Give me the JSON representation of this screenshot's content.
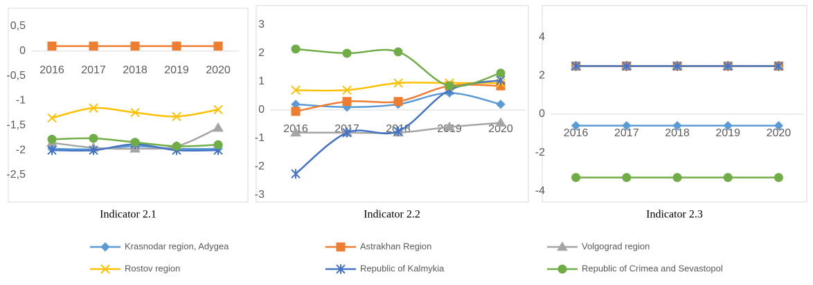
{
  "chart_data": [
    {
      "type": "line",
      "title": "Indicator 2.1",
      "categories": [
        "2016",
        "2017",
        "2018",
        "2019",
        "2020"
      ],
      "ylim": [
        -2.5,
        0.5
      ],
      "yticks": [
        {
          "value": 0.5,
          "label": "0,5"
        },
        0,
        {
          "value": -0.5,
          "label": "-0,5"
        },
        -1,
        {
          "value": -1.5,
          "label": "-1,5"
        },
        -2,
        {
          "value": -2.5,
          "label": "-2,5"
        }
      ],
      "grid": false,
      "legend": "bottom",
      "series": [
        {
          "name": "Krasnodar region, Adygea",
          "color": "#5b9bd5",
          "marker": "diamond",
          "values": [
            -1.97,
            -1.98,
            -1.92,
            -1.97,
            -1.97
          ]
        },
        {
          "name": "Astrakhan Region",
          "color": "#ed7d31",
          "marker": "square",
          "values": [
            0.1,
            0.1,
            0.1,
            0.1,
            0.1
          ]
        },
        {
          "name": "Volgograd region",
          "color": "#a5a5a5",
          "marker": "triangle",
          "values": [
            -1.85,
            -1.95,
            -1.97,
            -1.92,
            -1.55
          ]
        },
        {
          "name": "Rostov region",
          "color": "#ffc000",
          "marker": "x",
          "values": [
            -1.35,
            -1.15,
            -1.24,
            -1.32,
            -1.18
          ]
        },
        {
          "name": "Republic of Kalmykia",
          "color": "#4472c4",
          "marker": "star",
          "values": [
            -2,
            -2,
            -1.88,
            -2,
            -2
          ]
        },
        {
          "name": "Republic of Crimea and Sevastopol",
          "color": "#70ad47",
          "marker": "circle",
          "values": [
            -1.78,
            -1.76,
            -1.84,
            -1.92,
            -1.89
          ]
        }
      ]
    },
    {
      "type": "line",
      "title": "Indicator 2.2",
      "categories": [
        "2016",
        "2017",
        "2018",
        "2019",
        "2020"
      ],
      "ylim": [
        -3,
        3
      ],
      "yticks": [
        3,
        2,
        1,
        0,
        -1,
        -2,
        -3
      ],
      "grid": false,
      "series": [
        {
          "name": "Krasnodar region, Adygea",
          "color": "#5b9bd5",
          "marker": "diamond",
          "values": [
            0.2,
            0.1,
            0.2,
            0.6,
            0.2
          ]
        },
        {
          "name": "Astrakhan Region",
          "color": "#ed7d31",
          "marker": "square",
          "values": [
            -0.05,
            0.3,
            0.3,
            0.85,
            0.85
          ]
        },
        {
          "name": "Volgograd region",
          "color": "#a5a5a5",
          "marker": "triangle",
          "values": [
            -0.8,
            -0.8,
            -0.8,
            -0.6,
            -0.45
          ]
        },
        {
          "name": "Rostov region",
          "color": "#ffc000",
          "marker": "x",
          "values": [
            0.7,
            0.7,
            0.95,
            0.95,
            0.95
          ]
        },
        {
          "name": "Republic of Kalmykia",
          "color": "#4472c4",
          "marker": "star",
          "values": [
            -2.25,
            -0.8,
            -0.75,
            0.7,
            1.05
          ]
        },
        {
          "name": "Republic of Crimea and Sevastopol",
          "color": "#70ad47",
          "marker": "circle",
          "values": [
            2.15,
            2.0,
            2.05,
            0.85,
            1.3
          ]
        }
      ]
    },
    {
      "type": "line",
      "title": "Indicator 2.3",
      "categories": [
        "2016",
        "2017",
        "2018",
        "2019",
        "2020"
      ],
      "ylim": [
        -4.5,
        4.5
      ],
      "yticks": [
        4,
        2,
        0,
        -2,
        -4
      ],
      "grid": false,
      "series": [
        {
          "name": "Krasnodar region, Adygea",
          "color": "#5b9bd5",
          "marker": "diamond",
          "values": [
            -0.6,
            -0.6,
            -0.6,
            -0.6,
            -0.6
          ]
        },
        {
          "name": "Astrakhan Region",
          "color": "#ed7d31",
          "marker": "square",
          "values": [
            2.5,
            2.5,
            2.5,
            2.5,
            2.5
          ]
        },
        {
          "name": "Volgograd region",
          "color": "#a5a5a5",
          "marker": "triangle",
          "values": [
            2.5,
            2.5,
            2.5,
            2.5,
            2.5
          ]
        },
        {
          "name": "Rostov region",
          "color": "#ffc000",
          "marker": "x",
          "values": [
            2.5,
            2.5,
            2.5,
            2.5,
            2.5
          ]
        },
        {
          "name": "Republic of Kalmykia",
          "color": "#4472c4",
          "marker": "star",
          "values": [
            2.5,
            2.5,
            2.5,
            2.5,
            2.5
          ]
        },
        {
          "name": "Republic of Crimea and Sevastopol",
          "color": "#70ad47",
          "marker": "circle",
          "values": [
            -3.3,
            -3.3,
            -3.3,
            -3.3,
            -3.3
          ]
        }
      ]
    }
  ]
}
